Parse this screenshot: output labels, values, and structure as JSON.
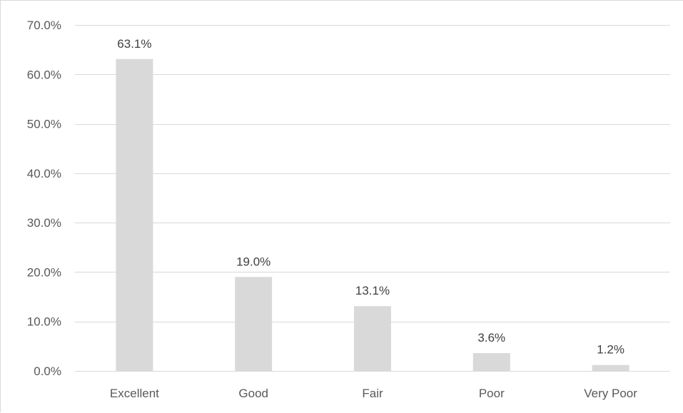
{
  "chart_data": {
    "type": "bar",
    "categories": [
      "Excellent",
      "Good",
      "Fair",
      "Poor",
      "Very Poor"
    ],
    "values": [
      63.1,
      19.0,
      13.1,
      3.6,
      1.2
    ],
    "data_labels": [
      "63.1%",
      "19.0%",
      "13.1%",
      "3.6%",
      "1.2%"
    ],
    "y_ticks": [
      0,
      10,
      20,
      30,
      40,
      50,
      60,
      70
    ],
    "y_tick_labels": [
      "0.0%",
      "10.0%",
      "20.0%",
      "30.0%",
      "40.0%",
      "50.0%",
      "60.0%",
      "70.0%"
    ],
    "ylim": [
      0,
      70
    ],
    "title": "",
    "xlabel": "",
    "ylabel": "",
    "grid": true,
    "legend": "none",
    "bar_color": "#d9d9d9",
    "gridline_color": "#d9d9d9",
    "axis_text_color": "#595959",
    "label_text_color": "#404040"
  }
}
